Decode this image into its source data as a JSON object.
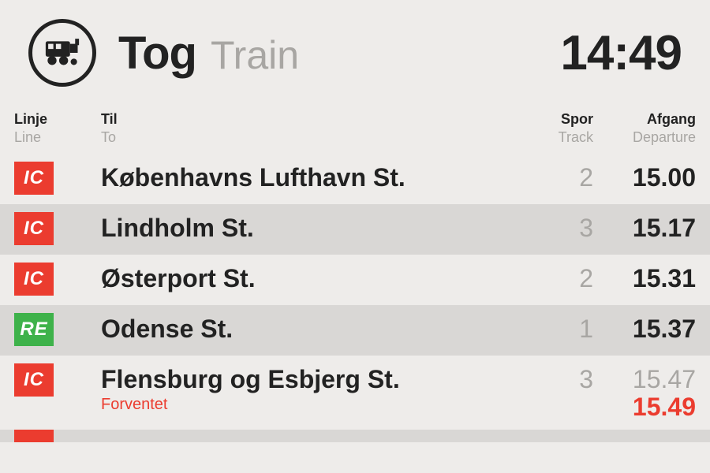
{
  "header": {
    "title_primary": "Tog",
    "title_secondary": "Train",
    "clock": "14:49"
  },
  "columns": {
    "line": {
      "primary": "Linje",
      "secondary": "Line"
    },
    "to": {
      "primary": "Til",
      "secondary": "To"
    },
    "track": {
      "primary": "Spor",
      "secondary": "Track"
    },
    "departure": {
      "primary": "Afgang",
      "secondary": "Departure"
    }
  },
  "colors": {
    "background": "#eeecea",
    "row_alt": "#d9d7d5",
    "text": "#222222",
    "muted": "#a8a6a3",
    "delay": "#eb3c2f",
    "badge_IC": "#eb3c2f",
    "badge_RE": "#3eb24a"
  },
  "departures": [
    {
      "line": "IC",
      "line_color": "#eb3c2f",
      "destination": "Københavns Lufthavn St.",
      "track": "2",
      "time": "15.00"
    },
    {
      "line": "IC",
      "line_color": "#eb3c2f",
      "destination": "Lindholm St.",
      "track": "3",
      "time": "15.17"
    },
    {
      "line": "IC",
      "line_color": "#eb3c2f",
      "destination": "Østerport St.",
      "track": "2",
      "time": "15.31"
    },
    {
      "line": "RE",
      "line_color": "#3eb24a",
      "destination": "Odense St.",
      "track": "1",
      "time": "15.37"
    },
    {
      "line": "IC",
      "line_color": "#eb3c2f",
      "destination": "Flensburg og Esbjerg St.",
      "track": "3",
      "time": "15.47",
      "expected_label": "Forventet",
      "expected_time": "15.49",
      "delay_color": "#eb3c2f"
    }
  ],
  "partial_next": {
    "line_color": "#eb3c2f"
  }
}
